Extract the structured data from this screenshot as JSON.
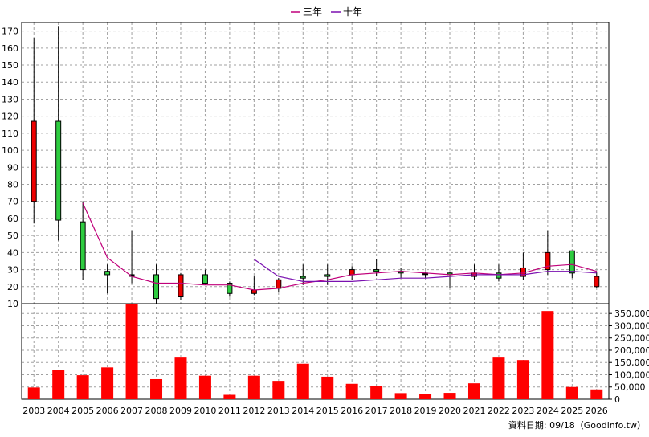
{
  "chart_data": {
    "type": "candlestick",
    "legend": {
      "placement": "top-center",
      "items": [
        {
          "label": "三年",
          "color": "#c0007a"
        },
        {
          "label": "十年",
          "color": "#7a10b0"
        }
      ]
    },
    "footer": "資料日期: 09/18（Goodinfo.tw）",
    "categories": [
      "2003",
      "2004",
      "2005",
      "2006",
      "2007",
      "2008",
      "2009",
      "2010",
      "2011",
      "2012",
      "2013",
      "2014",
      "2015",
      "2016",
      "2017",
      "2018",
      "2019",
      "2020",
      "2021",
      "2022",
      "2023",
      "2024",
      "2025",
      "2026"
    ],
    "price_axis": {
      "ylim": [
        10,
        175
      ],
      "ticks": [
        10,
        20,
        30,
        40,
        50,
        60,
        70,
        80,
        90,
        100,
        110,
        120,
        130,
        140,
        150,
        160,
        170
      ],
      "grid": true
    },
    "volume_axis": {
      "ylim": [
        0,
        390000
      ],
      "ticks": [
        0,
        50000,
        100000,
        150000,
        200000,
        250000,
        300000,
        350000
      ],
      "tick_labels": [
        "0",
        "50,000",
        "100,000",
        "150,000",
        "200,000",
        "250,000",
        "300,000",
        "350,000"
      ],
      "grid": true
    },
    "candles": [
      {
        "year": "2003",
        "open": 117,
        "close": 70,
        "high": 166,
        "low": 57
      },
      {
        "year": "2004",
        "open": 59,
        "close": 117,
        "high": 173,
        "low": 47
      },
      {
        "year": "2005",
        "open": 30,
        "close": 58,
        "high": 70,
        "low": 24
      },
      {
        "year": "2006",
        "open": 27,
        "close": 29,
        "high": 33,
        "low": 16
      },
      {
        "year": "2007",
        "open": 27,
        "close": 27,
        "high": 53,
        "low": 22
      },
      {
        "year": "2008",
        "open": 13,
        "close": 27,
        "high": 33,
        "low": 10
      },
      {
        "year": "2009",
        "open": 27,
        "close": 14,
        "high": 28,
        "low": 12
      },
      {
        "year": "2010",
        "open": 22,
        "close": 27,
        "high": 30,
        "low": 21
      },
      {
        "year": "2011",
        "open": 16,
        "close": 22,
        "high": 23,
        "low": 14
      },
      {
        "year": "2012",
        "open": 18,
        "close": 16,
        "high": 26,
        "low": 15
      },
      {
        "year": "2013",
        "open": 24,
        "close": 19,
        "high": 25,
        "low": 17
      },
      {
        "year": "2014",
        "open": 25,
        "close": 26,
        "high": 33,
        "low": 21
      },
      {
        "year": "2015",
        "open": 26,
        "close": 27,
        "high": 33,
        "low": 21
      },
      {
        "year": "2016",
        "open": 30,
        "close": 27,
        "high": 32,
        "low": 24
      },
      {
        "year": "2017",
        "open": 29,
        "close": 30,
        "high": 36,
        "low": 26
      },
      {
        "year": "2018",
        "open": 28,
        "close": 29,
        "high": 31,
        "low": 25
      },
      {
        "year": "2019",
        "open": 28,
        "close": 28,
        "high": 29,
        "low": 25
      },
      {
        "year": "2020",
        "open": 27,
        "close": 28,
        "high": 29,
        "low": 19
      },
      {
        "year": "2021",
        "open": 28,
        "close": 26,
        "high": 33,
        "low": 24
      },
      {
        "year": "2022",
        "open": 25,
        "close": 28,
        "high": 33,
        "low": 23
      },
      {
        "year": "2023",
        "open": 31,
        "close": 26,
        "high": 40,
        "low": 24
      },
      {
        "year": "2024",
        "open": 40,
        "close": 30,
        "high": 53,
        "low": 27
      },
      {
        "year": "2025",
        "open": 28,
        "close": 41,
        "high": 41,
        "low": 25
      },
      {
        "year": "2026",
        "open": 26,
        "close": 20,
        "high": 29,
        "low": 19
      }
    ],
    "series": [
      {
        "name": "三年",
        "color": "#c0007a",
        "values": [
          null,
          null,
          69,
          37,
          26,
          22,
          22,
          21,
          21,
          18,
          19,
          22,
          24,
          27,
          28,
          29,
          28,
          27,
          28,
          27,
          28,
          32,
          33,
          29
        ]
      },
      {
        "name": "十年",
        "color": "#7a10b0",
        "values": [
          null,
          null,
          null,
          null,
          null,
          null,
          null,
          null,
          null,
          36,
          26,
          23,
          23,
          23,
          24,
          25,
          25,
          26,
          27,
          27,
          27,
          29,
          29,
          28
        ]
      }
    ],
    "volume": [
      48000,
      120000,
      98000,
      130000,
      395000,
      82000,
      170000,
      96000,
      18000,
      96000,
      75000,
      145000,
      92000,
      63000,
      55000,
      25000,
      20000,
      26000,
      65000,
      170000,
      160000,
      360000,
      50000,
      40000
    ]
  }
}
